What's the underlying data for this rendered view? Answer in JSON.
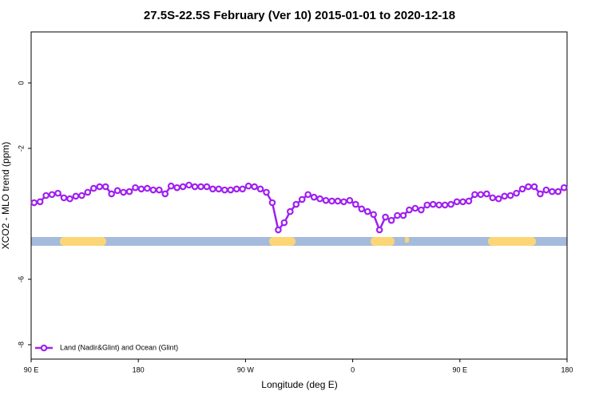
{
  "chart_data": {
    "type": "line",
    "title": "27.5S-22.5S February (Ver 10)   2015-01-01 to 2020-12-18",
    "x_label": "Longitude (deg E)",
    "y_label": "XCO2 - MLO trend (ppm)",
    "xlim": [
      90,
      540
    ],
    "xticks": [
      {
        "value": 90,
        "label": "90 E"
      },
      180,
      {
        "value": 270,
        "label": "90 W"
      },
      {
        "value": 360,
        "label": "0"
      },
      {
        "value": 450,
        "label": "90 E"
      },
      {
        "value": 540,
        "label": "180"
      }
    ],
    "ylim": [
      -8.44,
      1.56
    ],
    "yticks": [
      0,
      -2,
      -6,
      -8
    ],
    "grid": false,
    "legend": "bottom-left",
    "x": [
      92.5,
      97.5,
      102.5,
      107.5,
      112.5,
      117.5,
      122.5,
      127.5,
      132.5,
      137.5,
      142.5,
      147.5,
      152.5,
      157.5,
      162.5,
      167.5,
      172.5,
      177.5,
      182.5,
      187.5,
      192.5,
      197.5,
      202.5,
      207.5,
      212.5,
      217.5,
      222.5,
      227.5,
      232.5,
      237.5,
      242.5,
      247.5,
      252.5,
      257.5,
      262.5,
      267.5,
      272.5,
      277.5,
      282.5,
      287.5,
      292.5,
      297.5,
      302.5,
      307.5,
      312.5,
      317.5,
      322.5,
      327.5,
      332.5,
      337.5,
      342.5,
      347.5,
      352.5,
      357.5,
      362.5,
      367.5,
      372.5,
      377.5,
      382.5,
      387.5,
      392.5,
      397.5,
      402.5,
      407.5,
      412.5,
      417.5,
      422.5,
      427.5,
      432.5,
      437.5,
      442.5,
      447.5,
      452.5,
      457.5,
      462.5,
      467.5,
      472.5,
      477.5,
      482.5,
      487.5,
      492.5,
      497.5,
      502.5,
      507.5,
      512.5,
      517.5,
      522.5,
      527.5,
      532.5,
      537.5
    ],
    "series": [
      {
        "name": "Land (Nadir&Glint) and Ocean (Glint)",
        "color": "#a020f0",
        "values": [
          -3.66,
          -3.63,
          -3.44,
          -3.41,
          -3.37,
          -3.51,
          -3.54,
          -3.46,
          -3.44,
          -3.34,
          -3.22,
          -3.17,
          -3.17,
          -3.39,
          -3.29,
          -3.34,
          -3.32,
          -3.2,
          -3.24,
          -3.22,
          -3.27,
          -3.27,
          -3.39,
          -3.15,
          -3.2,
          -3.17,
          -3.12,
          -3.17,
          -3.17,
          -3.17,
          -3.24,
          -3.24,
          -3.27,
          -3.27,
          -3.24,
          -3.24,
          -3.15,
          -3.17,
          -3.24,
          -3.34,
          -3.66,
          -4.49,
          -4.27,
          -3.93,
          -3.71,
          -3.56,
          -3.41,
          -3.49,
          -3.54,
          -3.59,
          -3.61,
          -3.61,
          -3.63,
          -3.59,
          -3.71,
          -3.85,
          -3.93,
          -4.02,
          -4.49,
          -4.1,
          -4.2,
          -4.05,
          -4.05,
          -3.88,
          -3.83,
          -3.88,
          -3.73,
          -3.71,
          -3.73,
          -3.73,
          -3.71,
          -3.63,
          -3.63,
          -3.61,
          -3.41,
          -3.41,
          -3.39,
          -3.51,
          -3.54,
          -3.46,
          -3.44,
          -3.37,
          -3.24,
          -3.17,
          -3.17,
          -3.39,
          -3.27,
          -3.32,
          -3.32,
          -3.2
        ]
      }
    ]
  }
}
